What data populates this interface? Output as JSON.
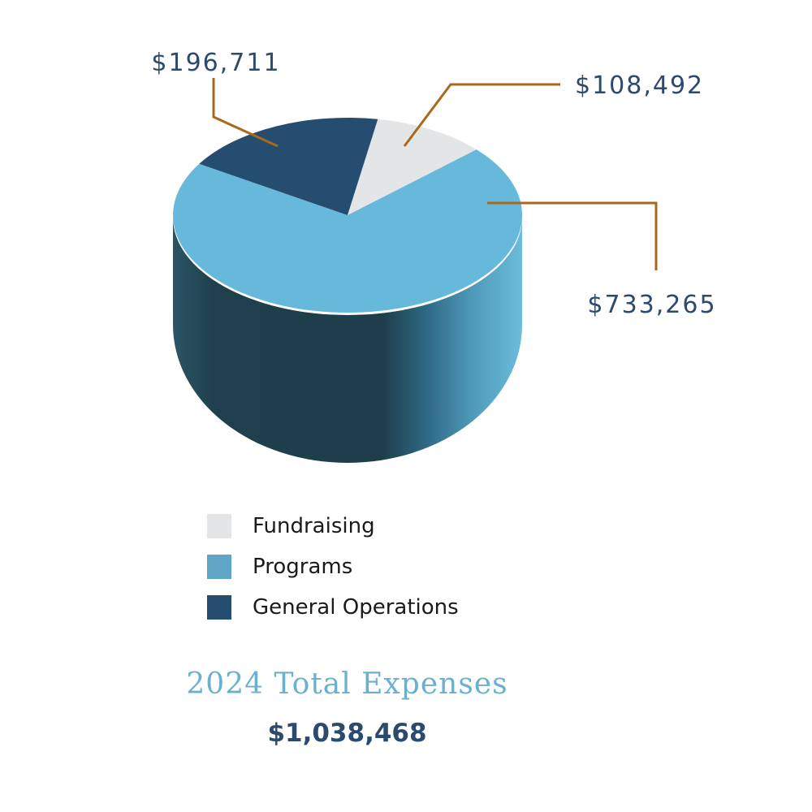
{
  "chart_data": {
    "type": "pie",
    "style": "3d",
    "title": "2024 Total Expenses",
    "total": "$1,038,468",
    "slices": [
      {
        "name": "Fundraising",
        "value": 108492,
        "label": "$108,492",
        "color": "#e4e5e7"
      },
      {
        "name": "Programs",
        "value": 733265,
        "label": "$733,265",
        "color": "#67b9dc"
      },
      {
        "name": "General Operations",
        "value": 196711,
        "label": "$196,711",
        "color": "#244d70"
      }
    ],
    "legend": [
      {
        "label": "Fundraising",
        "color": "#e4e5e7"
      },
      {
        "label": "Programs",
        "color": "#5fa6c6"
      },
      {
        "label": "General Operations",
        "color": "#244d70"
      }
    ],
    "leader_color": "#a8691f"
  }
}
